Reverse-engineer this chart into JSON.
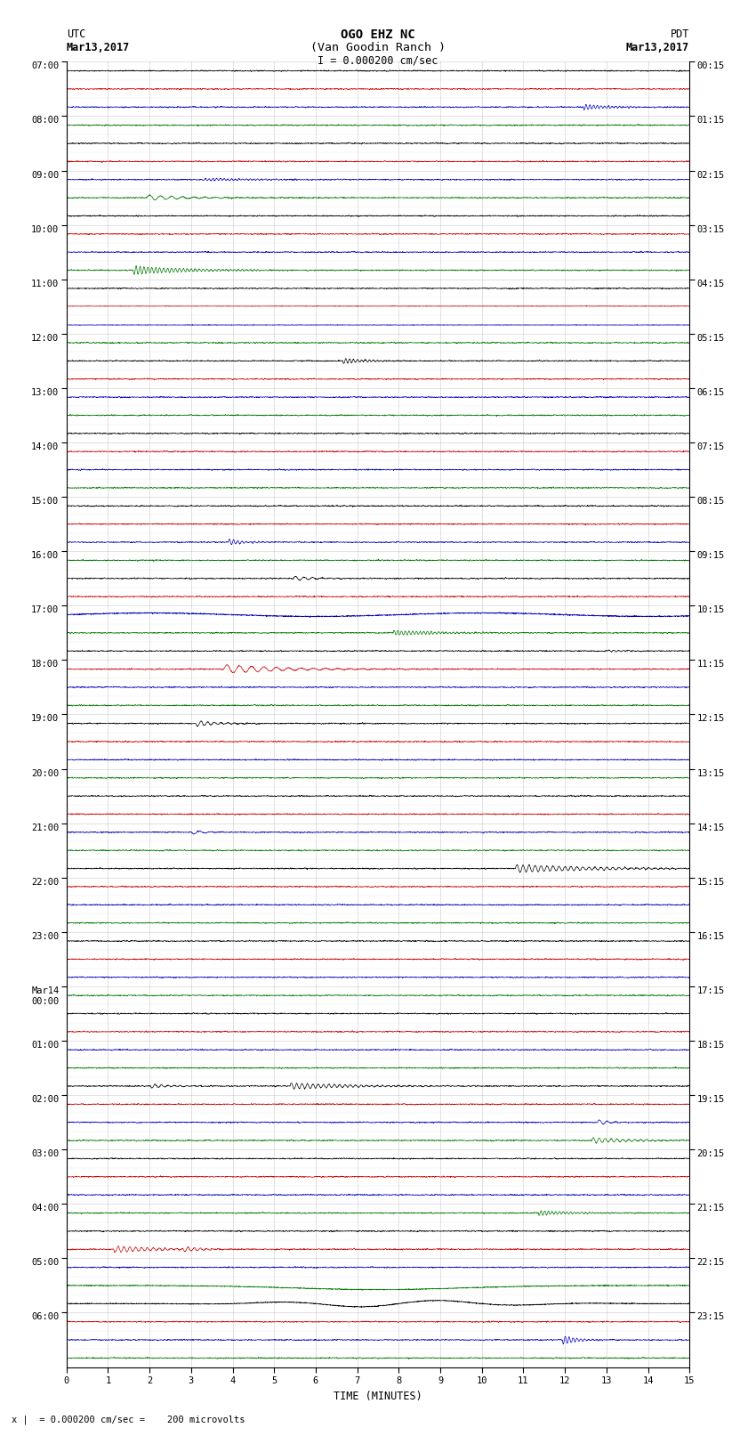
{
  "title_line1": "OGO EHZ NC",
  "title_line2": "(Van Goodin Ranch )",
  "title_line3": "I = 0.000200 cm/sec",
  "left_header_label": "UTC",
  "left_date": "Mar13,2017",
  "right_header_label": "PDT",
  "right_date": "Mar13,2017",
  "xlabel": "TIME (MINUTES)",
  "footer_text": "x |  = 0.000200 cm/sec =    200 microvolts",
  "utc_times_major": [
    "07:00",
    "08:00",
    "09:00",
    "10:00",
    "11:00",
    "12:00",
    "13:00",
    "14:00",
    "15:00",
    "16:00",
    "17:00",
    "18:00",
    "19:00",
    "20:00",
    "21:00",
    "22:00",
    "23:00",
    "Mar14\n00:00",
    "01:00",
    "02:00",
    "03:00",
    "04:00",
    "05:00",
    "06:00"
  ],
  "pdt_times_major": [
    "00:15",
    "01:15",
    "02:15",
    "03:15",
    "04:15",
    "05:15",
    "06:15",
    "07:15",
    "08:15",
    "09:15",
    "10:15",
    "11:15",
    "12:15",
    "13:15",
    "14:15",
    "15:15",
    "16:15",
    "17:15",
    "18:15",
    "19:15",
    "20:15",
    "21:15",
    "22:15",
    "23:15"
  ],
  "n_hours": 24,
  "rows_per_hour": 3,
  "n_minutes": 15,
  "background_color": "#ffffff",
  "grid_color": "#aaaaaa",
  "colors_cycle": [
    "#000000",
    "#cc0000",
    "#0000bb",
    "#007700"
  ],
  "title_fontsize": 10,
  "tick_fontsize": 7.5,
  "label_fontsize": 8.5,
  "noise_std": 0.06,
  "amplitude_scale": 0.38
}
